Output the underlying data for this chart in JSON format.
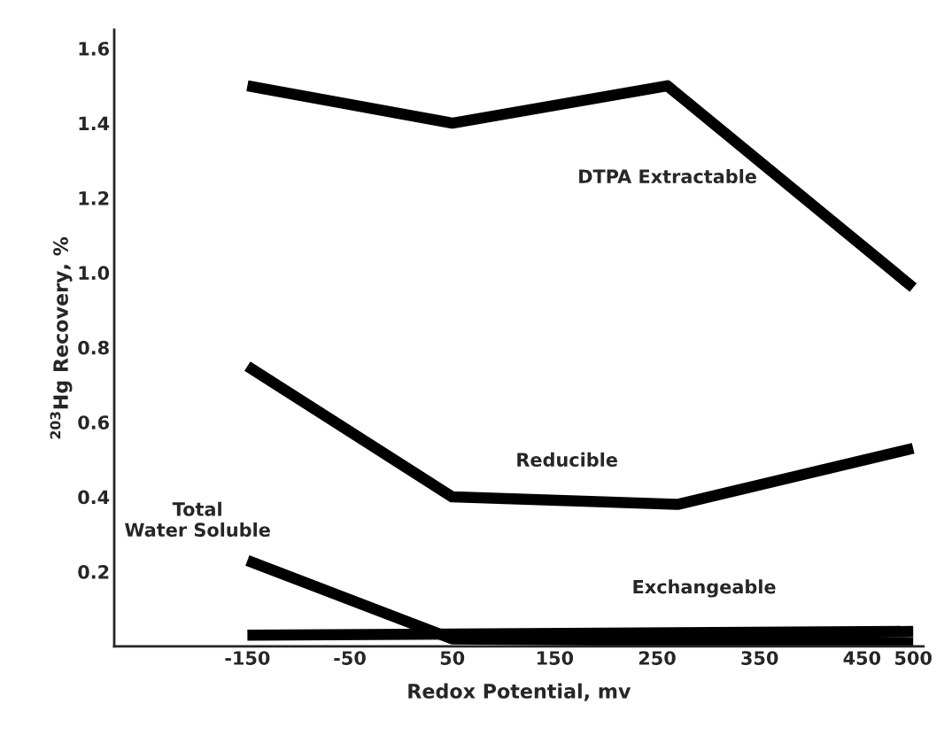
{
  "chart_data": {
    "type": "line",
    "xlabel": "Redox Potential, mv",
    "ylabel": "$^{203}$Hg Recovery, %",
    "xlim": [
      -280,
      510
    ],
    "xticks": [
      -150,
      -50,
      50,
      150,
      250,
      350,
      450,
      500
    ],
    "ylim": [
      0,
      1.65
    ],
    "yticks": [
      0.2,
      0.4,
      0.6,
      0.8,
      {
        "value": 1.0,
        "label": "1.0"
      },
      1.2,
      1.4,
      1.6
    ],
    "grid": false,
    "legend": false,
    "marker": "none",
    "line_style": "solid",
    "series": [
      {
        "name": "DTPA Extractable",
        "color": "#000000",
        "x": [
          -150,
          50,
          260,
          500
        ],
        "values": [
          1.5,
          1.4,
          1.5,
          0.96
        ]
      },
      {
        "name": "Reducible",
        "color": "#000000",
        "x": [
          -150,
          50,
          270,
          500
        ],
        "values": [
          0.75,
          0.4,
          0.38,
          0.53
        ]
      },
      {
        "name": "Total\nWater Soluble",
        "color": "#000000",
        "x": [
          -150,
          50,
          500
        ],
        "values": [
          0.23,
          0.02,
          0.01
        ]
      },
      {
        "name": "Exchangeable",
        "color": "#000000",
        "x": [
          -150,
          500
        ],
        "values": [
          0.03,
          0.04
        ]
      }
    ]
  }
}
